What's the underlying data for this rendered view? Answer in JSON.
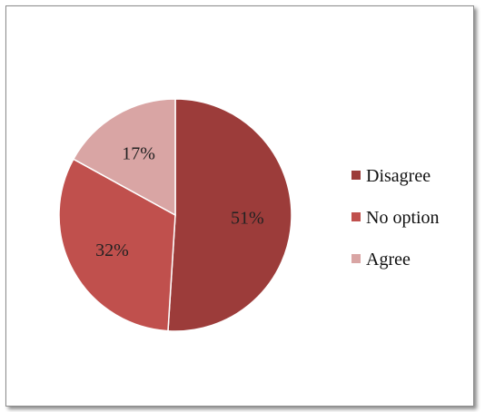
{
  "chart_data": {
    "type": "pie",
    "categories": [
      "Disagree",
      "No option",
      "Agree"
    ],
    "values": [
      51,
      32,
      17
    ],
    "value_labels": [
      "51%",
      "32%",
      "17%"
    ],
    "colors": [
      "#9c3c3a",
      "#c0504d",
      "#d9a5a4"
    ],
    "legend_position": "right",
    "start_angle_deg": 0,
    "direction": "clockwise"
  }
}
